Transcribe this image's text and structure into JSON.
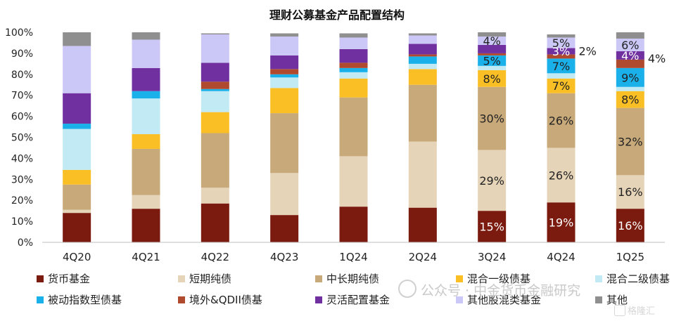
{
  "chart_data": {
    "type": "stacked-bar",
    "title": "理财公募基金产品配置结构",
    "categories": [
      "4Q20",
      "4Q21",
      "4Q22",
      "4Q23",
      "1Q24",
      "2Q24",
      "3Q24",
      "4Q24",
      "1Q25"
    ],
    "ylim": [
      0,
      100
    ],
    "yticks": [
      0,
      10,
      20,
      30,
      40,
      50,
      60,
      70,
      80,
      90,
      100
    ],
    "ytick_labels": [
      "0%",
      "10%",
      "20%",
      "30%",
      "40%",
      "50%",
      "60%",
      "70%",
      "80%",
      "90%",
      "100%"
    ],
    "grid": false,
    "legend_position": "bottom",
    "series": [
      {
        "name": "货币基金",
        "color": "#7b1a0e",
        "values": [
          14,
          16,
          18.5,
          13,
          17,
          16.5,
          15,
          19,
          16
        ]
      },
      {
        "name": "短期纯债",
        "color": "#e6d4b8",
        "values": [
          1.5,
          6.5,
          7.5,
          20,
          24,
          31.5,
          29,
          26,
          16
        ]
      },
      {
        "name": "中长期纯债",
        "color": "#c8a97a",
        "values": [
          12,
          22,
          26,
          28.5,
          28,
          27,
          30,
          26,
          32
        ]
      },
      {
        "name": "混合一级债基",
        "color": "#fbbf26",
        "values": [
          7,
          7,
          10,
          12,
          9,
          7.5,
          8,
          7,
          8
        ]
      },
      {
        "name": "混合二级债基",
        "color": "#c1eaf5",
        "values": [
          19.5,
          17,
          10,
          5,
          3,
          2.5,
          2,
          2.5,
          2
        ]
      },
      {
        "name": "被动指数型债基",
        "color": "#1ab0ea",
        "values": [
          2.5,
          3.5,
          1,
          1.5,
          2,
          3.5,
          5,
          7,
          9
        ]
      },
      {
        "name": "境外&QDII债基",
        "color": "#b04a2e",
        "values": [
          0,
          0,
          3.5,
          2.5,
          2.5,
          1,
          1,
          2,
          4
        ]
      },
      {
        "name": "灵活配置基金",
        "color": "#7030a0",
        "values": [
          14.5,
          11,
          9,
          6.5,
          6.5,
          5,
          4,
          3,
          4
        ]
      },
      {
        "name": "其他股混类基金",
        "color": "#cbc8f7",
        "values": [
          22.5,
          13.5,
          13.5,
          9,
          5.5,
          4,
          4,
          5,
          6
        ]
      },
      {
        "name": "其他",
        "color": "#8f8f8f",
        "values": [
          6.5,
          3.5,
          0.5,
          1.5,
          2,
          1,
          2,
          1.5,
          3
        ]
      }
    ],
    "data_labels": [
      {
        "category": "3Q24",
        "series": "货币基金",
        "text": "15%",
        "color": "#ffffff"
      },
      {
        "category": "3Q24",
        "series": "短期纯债",
        "text": "29%",
        "color": "#222222"
      },
      {
        "category": "3Q24",
        "series": "中长期纯债",
        "text": "30%",
        "color": "#222222"
      },
      {
        "category": "3Q24",
        "series": "混合一级债基",
        "text": "8%",
        "color": "#222222"
      },
      {
        "category": "3Q24",
        "series": "被动指数型债基",
        "text": "5%",
        "color": "#222222"
      },
      {
        "category": "3Q24",
        "series": "其他股混类基金",
        "text": "4%",
        "color": "#222222"
      },
      {
        "category": "4Q24",
        "series": "货币基金",
        "text": "19%",
        "color": "#ffffff"
      },
      {
        "category": "4Q24",
        "series": "短期纯债",
        "text": "26%",
        "color": "#222222"
      },
      {
        "category": "4Q24",
        "series": "中长期纯债",
        "text": "26%",
        "color": "#222222"
      },
      {
        "category": "4Q24",
        "series": "混合一级债基",
        "text": "7%",
        "color": "#222222"
      },
      {
        "category": "4Q24",
        "series": "被动指数型债基",
        "text": "7%",
        "color": "#222222"
      },
      {
        "category": "4Q24",
        "series": "灵活配置基金",
        "text": "3%",
        "color": "#ffffff"
      },
      {
        "category": "4Q24",
        "series": "其他股混类基金",
        "text": "5%",
        "color": "#222222"
      },
      {
        "category": "4Q24",
        "series": "境外&QDII债基",
        "text": "2%",
        "color": "#222222",
        "outside": true
      },
      {
        "category": "1Q25",
        "series": "货币基金",
        "text": "16%",
        "color": "#ffffff"
      },
      {
        "category": "1Q25",
        "series": "短期纯债",
        "text": "16%",
        "color": "#222222"
      },
      {
        "category": "1Q25",
        "series": "中长期纯债",
        "text": "32%",
        "color": "#222222"
      },
      {
        "category": "1Q25",
        "series": "混合一级债基",
        "text": "8%",
        "color": "#222222"
      },
      {
        "category": "1Q25",
        "series": "被动指数型债基",
        "text": "9%",
        "color": "#222222"
      },
      {
        "category": "1Q25",
        "series": "灵活配置基金",
        "text": "4%",
        "color": "#ffffff"
      },
      {
        "category": "1Q25",
        "series": "其他股混类基金",
        "text": "6%",
        "color": "#222222"
      },
      {
        "category": "1Q25",
        "series": "境外&QDII债基",
        "text": "4%",
        "color": "#222222",
        "outside": true
      }
    ]
  },
  "watermark": {
    "wechat": "公众号 · 中金货币金融研究",
    "logo": "格隆汇"
  }
}
